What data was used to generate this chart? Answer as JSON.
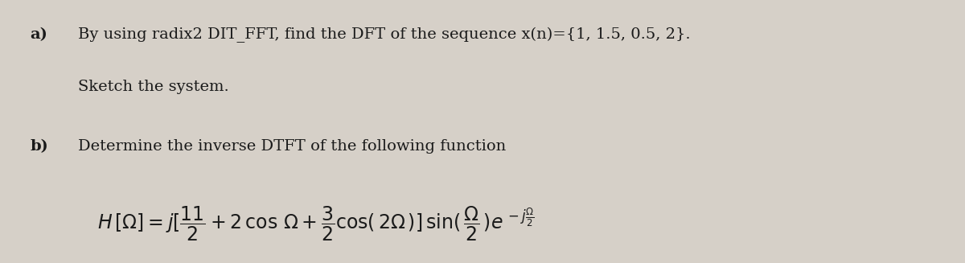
{
  "background_color": "#d6d0c8",
  "fig_width": 12.0,
  "fig_height": 3.27,
  "dpi": 100,
  "text_color": "#1a1a1a",
  "part_a_label": "a)",
  "part_a_line1": "By using radix2 DIT_FFT, find the DFT of the sequence x(n)={1, 1.5, 0.5, 2}.",
  "part_a_line2": "Sketch the system.",
  "part_b_label": "b)",
  "part_b_line1": "Determine the inverse DTFT of the following function",
  "font_size_text": 14,
  "font_size_math": 15
}
